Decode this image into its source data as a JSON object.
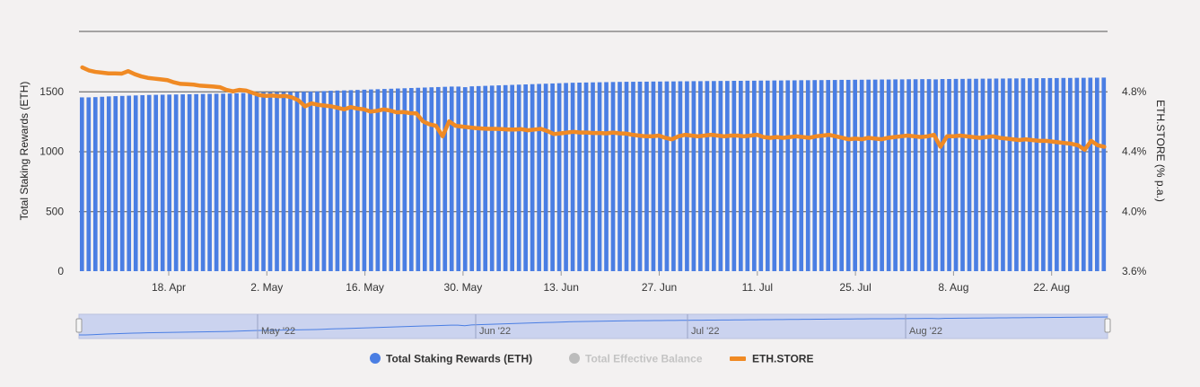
{
  "chart_data": {
    "type": "bar",
    "colors": {
      "bars": "#4a7ee3",
      "line": "#f08a24",
      "grid": "#555555",
      "navigator_fill": "#cbd3ef",
      "navigator_line": "#4a7ee3",
      "hidden_series": "#bcbcbc",
      "background": "#f3f1f1"
    },
    "x_tick_labels": [
      "18. Apr",
      "2. May",
      "16. May",
      "30. May",
      "13. Jun",
      "27. Jun",
      "11. Jul",
      "25. Jul",
      "8. Aug",
      "22. Aug"
    ],
    "y_left": {
      "label": "Total Staking Rewards (ETH)",
      "ticks": [
        0,
        500,
        1000,
        1500
      ],
      "range": [
        0,
        2000
      ]
    },
    "y_right": {
      "label": "ETH.STORE (% p.a.)",
      "ticks": [
        "3.6%",
        "4.0%",
        "4.4%",
        "4.8%"
      ],
      "range": [
        3.6,
        5.2
      ]
    },
    "navigator_labels": [
      "May '22",
      "Jun '22",
      "Jul '22",
      "Aug '22"
    ],
    "legend": [
      {
        "name": "Total Staking Rewards (ETH)",
        "marker": "circle",
        "color": "#4a7ee3",
        "visible": true
      },
      {
        "name": "Total Effective Balance",
        "marker": "circle",
        "color": "#bcbcbc",
        "visible": false
      },
      {
        "name": "ETH.STORE",
        "marker": "line",
        "color": "#f08a24",
        "visible": true
      }
    ],
    "series": [
      {
        "name": "Total Staking Rewards (ETH)",
        "axis": "left",
        "type": "bar",
        "values": [
          1450,
          1450,
          1452,
          1455,
          1458,
          1460,
          1462,
          1464,
          1466,
          1468,
          1470,
          1471,
          1472,
          1473,
          1474,
          1475,
          1476,
          1477,
          1478,
          1479,
          1480,
          1481,
          1482,
          1484,
          1486,
          1488,
          1490,
          1491,
          1492,
          1493,
          1494,
          1495,
          1496,
          1497,
          1498,
          1500,
          1502,
          1505,
          1507,
          1508,
          1510,
          1512,
          1514,
          1516,
          1518,
          1520,
          1522,
          1524,
          1526,
          1528,
          1530,
          1532,
          1534,
          1536,
          1538,
          1540,
          1540,
          1535,
          1542,
          1544,
          1546,
          1548,
          1550,
          1552,
          1554,
          1556,
          1558,
          1560,
          1562,
          1564,
          1566,
          1568,
          1570,
          1572,
          1573,
          1574,
          1575,
          1576,
          1577,
          1578,
          1579,
          1580,
          1580,
          1581,
          1581,
          1582,
          1582,
          1583,
          1583,
          1584,
          1584,
          1585,
          1585,
          1586,
          1586,
          1587,
          1587,
          1588,
          1588,
          1589,
          1589,
          1590,
          1590,
          1591,
          1591,
          1592,
          1592,
          1593,
          1593,
          1594,
          1594,
          1595,
          1595,
          1596,
          1596,
          1597,
          1597,
          1598,
          1598,
          1599,
          1599,
          1600,
          1600,
          1601,
          1601,
          1602,
          1602,
          1600,
          1603,
          1603,
          1604,
          1604,
          1605,
          1605,
          1606,
          1606,
          1607,
          1607,
          1608,
          1608,
          1609,
          1609,
          1610,
          1610,
          1611,
          1611,
          1612,
          1612,
          1613,
          1613,
          1614,
          1614,
          1615
        ]
      },
      {
        "name": "ETH.STORE",
        "axis": "right",
        "type": "line",
        "values": [
          4.96,
          4.94,
          4.93,
          4.925,
          4.92,
          4.92,
          4.918,
          4.935,
          4.915,
          4.9,
          4.89,
          4.885,
          4.88,
          4.875,
          4.86,
          4.85,
          4.848,
          4.845,
          4.838,
          4.835,
          4.832,
          4.828,
          4.81,
          4.8,
          4.81,
          4.805,
          4.79,
          4.775,
          4.77,
          4.772,
          4.768,
          4.77,
          4.76,
          4.74,
          4.7,
          4.72,
          4.71,
          4.705,
          4.7,
          4.69,
          4.68,
          4.695,
          4.685,
          4.68,
          4.665,
          4.67,
          4.68,
          4.672,
          4.66,
          4.662,
          4.655,
          4.653,
          4.6,
          4.58,
          4.57,
          4.5,
          4.6,
          4.57,
          4.565,
          4.56,
          4.555,
          4.552,
          4.55,
          4.55,
          4.548,
          4.545,
          4.545,
          4.548,
          4.54,
          4.545,
          4.55,
          4.535,
          4.515,
          4.52,
          4.525,
          4.53,
          4.525,
          4.525,
          4.522,
          4.522,
          4.52,
          4.525,
          4.52,
          4.518,
          4.51,
          4.505,
          4.5,
          4.5,
          4.505,
          4.49,
          4.48,
          4.5,
          4.51,
          4.505,
          4.5,
          4.505,
          4.51,
          4.505,
          4.5,
          4.505,
          4.505,
          4.5,
          4.505,
          4.51,
          4.495,
          4.49,
          4.495,
          4.49,
          4.495,
          4.5,
          4.495,
          4.49,
          4.5,
          4.505,
          4.51,
          4.5,
          4.49,
          4.48,
          4.485,
          4.48,
          4.49,
          4.485,
          4.48,
          4.49,
          4.495,
          4.5,
          4.505,
          4.5,
          4.495,
          4.5,
          4.51,
          4.43,
          4.5,
          4.5,
          4.505,
          4.5,
          4.495,
          4.49,
          4.495,
          4.5,
          4.49,
          4.485,
          4.48,
          4.475,
          4.48,
          4.475,
          4.47,
          4.47,
          4.465,
          4.46,
          4.455,
          4.45,
          4.44,
          4.41,
          4.47,
          4.44,
          4.43
        ]
      }
    ]
  }
}
